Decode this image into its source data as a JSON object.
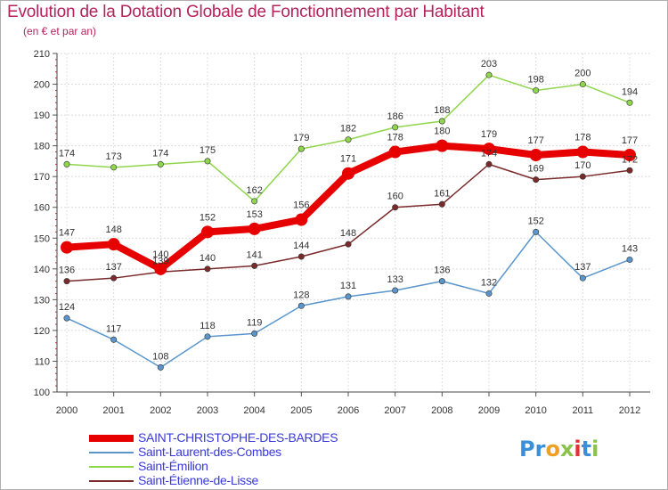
{
  "header": {
    "title": "Evolution de la Dotation Globale de Fonctionnement par Habitant",
    "subtitle": "(en € et par an)"
  },
  "logo": {
    "text": "Proxiti",
    "letters": [
      "P",
      "r",
      "o",
      "x",
      "i",
      "t",
      "i"
    ],
    "colors": [
      "#3a8fd8",
      "#3a8fd8",
      "#f0a020",
      "#8bc34a",
      "#e53030",
      "#3a8fd8",
      "#8bc34a"
    ]
  },
  "chart_data": {
    "type": "line",
    "x": [
      "2000",
      "2001",
      "2002",
      "2003",
      "2004",
      "2005",
      "2006",
      "2007",
      "2008",
      "2009",
      "2010",
      "2011",
      "2012"
    ],
    "ylim": [
      100,
      210
    ],
    "yticks": [
      "100",
      "110",
      "120",
      "130",
      "140",
      "150",
      "160",
      "170",
      "180",
      "190",
      "200",
      "210"
    ],
    "grid": true,
    "legend_position": "bottom-left",
    "series": [
      {
        "name": "SAINT-CHRISTOPHE-DES-BARDES",
        "color": "#e60000",
        "values": [
          147,
          148,
          140,
          152,
          153,
          156,
          171,
          178,
          180,
          179,
          177,
          178,
          177
        ],
        "labels": [
          "147",
          "148",
          "140",
          "152",
          "153",
          "156",
          "171",
          "178",
          "180",
          "179",
          "177",
          "178",
          "177"
        ],
        "emphasis": true
      },
      {
        "name": "Saint-Laurent-des-Combes",
        "color": "#5a96cc",
        "values": [
          124,
          117,
          108,
          118,
          119,
          128,
          131,
          133,
          136,
          132,
          152,
          137,
          143
        ],
        "labels": [
          "124",
          "117",
          "108",
          "118",
          "119",
          "128",
          "131",
          "133",
          "136",
          "132",
          "152",
          "137",
          "143"
        ]
      },
      {
        "name": "Saint-Émilion",
        "color": "#8fd64c",
        "values": [
          174,
          173,
          174,
          175,
          162,
          179,
          182,
          186,
          188,
          203,
          198,
          200,
          194
        ],
        "labels": [
          "174",
          "173",
          "174",
          "175",
          "162",
          "179",
          "182",
          "186",
          "188",
          "203",
          "198",
          "200",
          "194"
        ]
      },
      {
        "name": "Saint-Étienne-de-Lisse",
        "color": "#7a2a2a",
        "values": [
          136,
          137,
          139,
          140,
          141,
          144,
          148,
          160,
          161,
          174,
          169,
          170,
          172
        ],
        "labels": [
          "136",
          "137",
          "139",
          "140",
          "141",
          "144",
          "148",
          "160",
          "161",
          "174",
          "169",
          "170",
          "172"
        ]
      }
    ]
  }
}
